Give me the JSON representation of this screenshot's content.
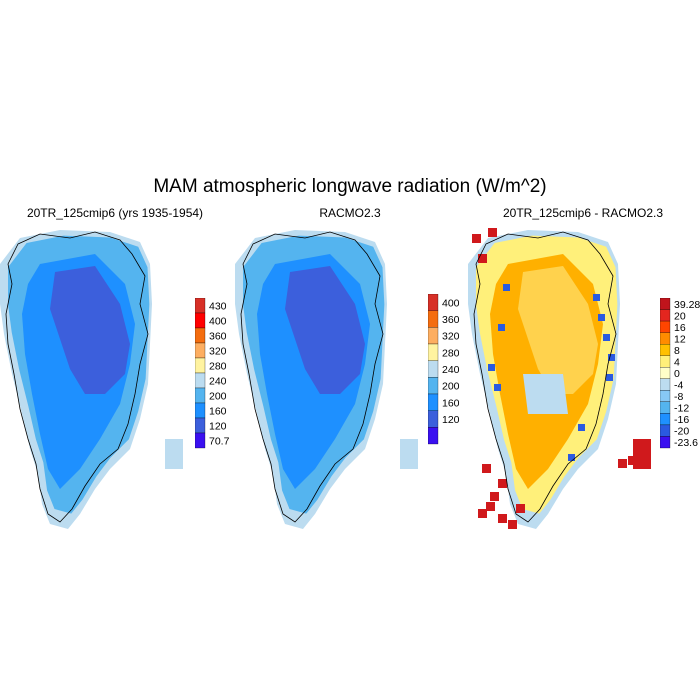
{
  "title": "MAM atmospheric longwave radiation (W/m^2)",
  "panels": [
    {
      "title": "20TR_125cmip6 (yrs 1935-1954)",
      "colorbar_labels": [
        "430",
        "400",
        "360",
        "320",
        "280",
        "240",
        "200",
        "160",
        "120",
        "70.7"
      ],
      "colors": [
        "#d73027",
        "#ff0000",
        "#f46d0f",
        "#fdae61",
        "#fff3a0",
        "#bcdcf0",
        "#54b4ef",
        "#1e90ff",
        "#3c5fdc",
        "#3a10f0"
      ],
      "core": "#3c5fdc",
      "mid": "#1e90ff",
      "edge": "#54b4ef",
      "outer": "#bcdcf0"
    },
    {
      "title": "RACMO2.3",
      "colorbar_labels": [
        "400",
        "360",
        "320",
        "280",
        "240",
        "200",
        "160",
        "120"
      ],
      "colors": [
        "#d73027",
        "#f46d0f",
        "#fdae61",
        "#fff3a0",
        "#bcdcf0",
        "#54b4ef",
        "#1e90ff",
        "#3c5fdc",
        "#3a10f0"
      ],
      "core": "#3c5fdc",
      "mid": "#1e90ff",
      "edge": "#54b4ef",
      "outer": "#bcdcf0"
    },
    {
      "title": "20TR_125cmip6 - RACMO2.3",
      "colorbar_labels": [
        "39.28",
        "20",
        "16",
        "12",
        "8",
        "4",
        "0",
        "-4",
        "-8",
        "-12",
        "-16",
        "-20",
        "-23.6"
      ],
      "colors": [
        "#c0141c",
        "#e3261f",
        "#ff4500",
        "#ff8c00",
        "#ffc000",
        "#fff07a",
        "#ffffc8",
        "#bcdcf0",
        "#87c8f5",
        "#54b4ef",
        "#1e90ff",
        "#2a5ae0",
        "#3a10f0"
      ],
      "core": "#ffd24d",
      "mid": "#ffb000",
      "edge": "#fff07a",
      "outer": "#bcdcf0"
    }
  ]
}
